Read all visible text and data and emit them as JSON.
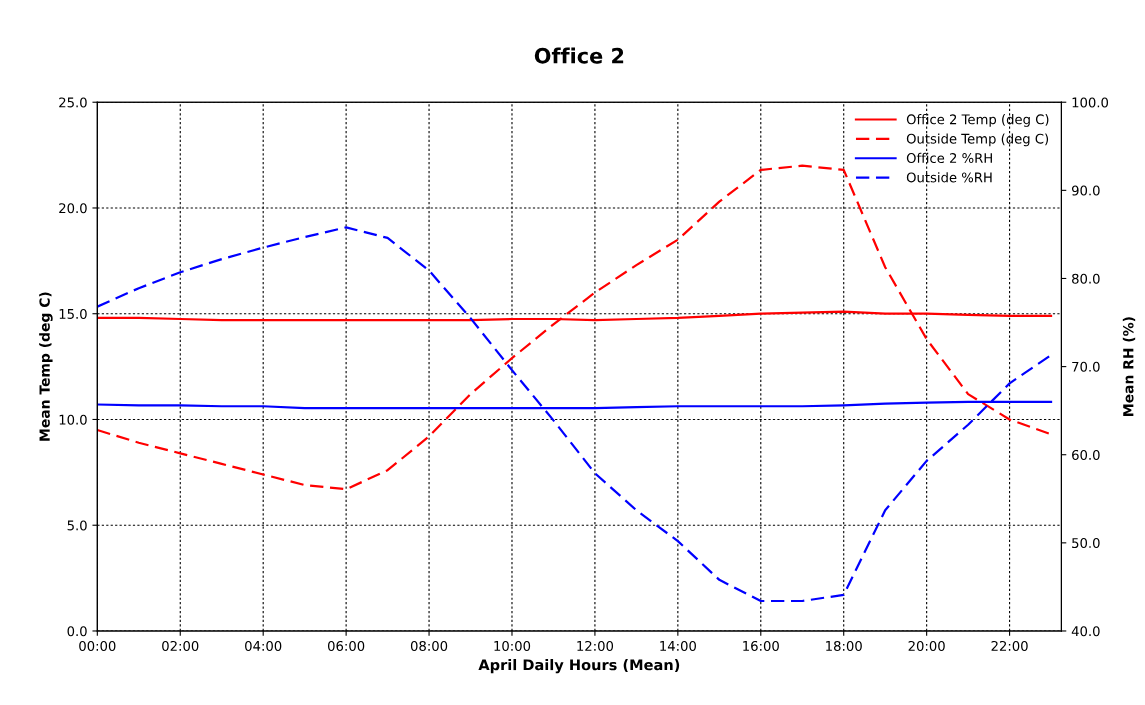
{
  "chart_data": {
    "type": "line",
    "title": "Office 2",
    "xlabel": "April Daily Hours (Mean)",
    "ylabel": "Mean Temp (deg C)",
    "y2label": "Mean RH (%)",
    "x": [
      0,
      1,
      2,
      3,
      4,
      5,
      6,
      7,
      8,
      9,
      10,
      11,
      12,
      13,
      14,
      15,
      16,
      17,
      18,
      19,
      20,
      21,
      22,
      23
    ],
    "series": [
      {
        "name": "Office 2 Temp (deg C)",
        "color": "#ff0000",
        "line_style": "solid",
        "values": [
          14.8,
          14.8,
          14.75,
          14.7,
          14.7,
          14.7,
          14.7,
          14.7,
          14.7,
          14.7,
          14.75,
          14.75,
          14.7,
          14.75,
          14.8,
          14.9,
          15.0,
          15.05,
          15.1,
          15.0,
          15.0,
          14.95,
          14.9,
          14.9
        ]
      },
      {
        "name": "Outside Temp (deg C)",
        "color": "#ff0000",
        "line_style": "dashed",
        "values": [
          9.5,
          8.9,
          8.4,
          7.9,
          7.4,
          6.9,
          6.7,
          7.6,
          9.2,
          11.2,
          12.9,
          14.5,
          16.0,
          17.3,
          18.5,
          20.3,
          21.8,
          22.0,
          21.8,
          17.2,
          13.8,
          11.2,
          10.0,
          9.3
        ]
      },
      {
        "name": "Office 2 %RH",
        "color": "#0000ff",
        "line_style": "solid",
        "axis": "y2",
        "values": [
          65.7,
          65.6,
          65.6,
          65.5,
          65.5,
          65.3,
          65.3,
          65.3,
          65.3,
          65.3,
          65.3,
          65.3,
          65.3,
          65.4,
          65.5,
          65.5,
          65.5,
          65.5,
          65.6,
          65.8,
          65.9,
          66.0,
          66.0,
          66.0
        ]
      },
      {
        "name": "Outside %RH",
        "color": "#0000ff",
        "line_style": "dashed",
        "axis": "y2",
        "values": [
          76.8,
          78.9,
          80.7,
          82.2,
          83.5,
          84.7,
          85.8,
          84.6,
          80.9,
          75.5,
          69.6,
          63.9,
          57.9,
          53.7,
          50.2,
          45.8,
          43.4,
          43.4,
          44.1,
          53.7,
          59.3,
          63.4,
          68.1,
          71.3
        ]
      }
    ],
    "xlim": [
      0,
      23.25
    ],
    "xticks": [
      {
        "value": 0,
        "label": "00:00"
      },
      {
        "value": 2,
        "label": "02:00"
      },
      {
        "value": 4,
        "label": "04:00"
      },
      {
        "value": 6,
        "label": "06:00"
      },
      {
        "value": 8,
        "label": "08:00"
      },
      {
        "value": 10,
        "label": "10:00"
      },
      {
        "value": 12,
        "label": "12:00"
      },
      {
        "value": 14,
        "label": "14:00"
      },
      {
        "value": 16,
        "label": "16:00"
      },
      {
        "value": 18,
        "label": "18:00"
      },
      {
        "value": 20,
        "label": "20:00"
      },
      {
        "value": 22,
        "label": "22:00"
      }
    ],
    "ylim": [
      0,
      25
    ],
    "yticks": [
      {
        "value": 0,
        "label": "0.0"
      },
      {
        "value": 5,
        "label": "5.0"
      },
      {
        "value": 10,
        "label": "10.0"
      },
      {
        "value": 15,
        "label": "15.0"
      },
      {
        "value": 20,
        "label": "20.0"
      },
      {
        "value": 25,
        "label": "25.0"
      }
    ],
    "y2lim": [
      40,
      100
    ],
    "y2ticks": [
      {
        "value": 40,
        "label": "40.0"
      },
      {
        "value": 50,
        "label": "50.0"
      },
      {
        "value": 60,
        "label": "60.0"
      },
      {
        "value": 70,
        "label": "70.0"
      },
      {
        "value": 80,
        "label": "80.0"
      },
      {
        "value": 90,
        "label": "90.0"
      },
      {
        "value": 100,
        "label": "100.0"
      }
    ],
    "grid": true,
    "legend": "top right",
    "marker": "none"
  }
}
